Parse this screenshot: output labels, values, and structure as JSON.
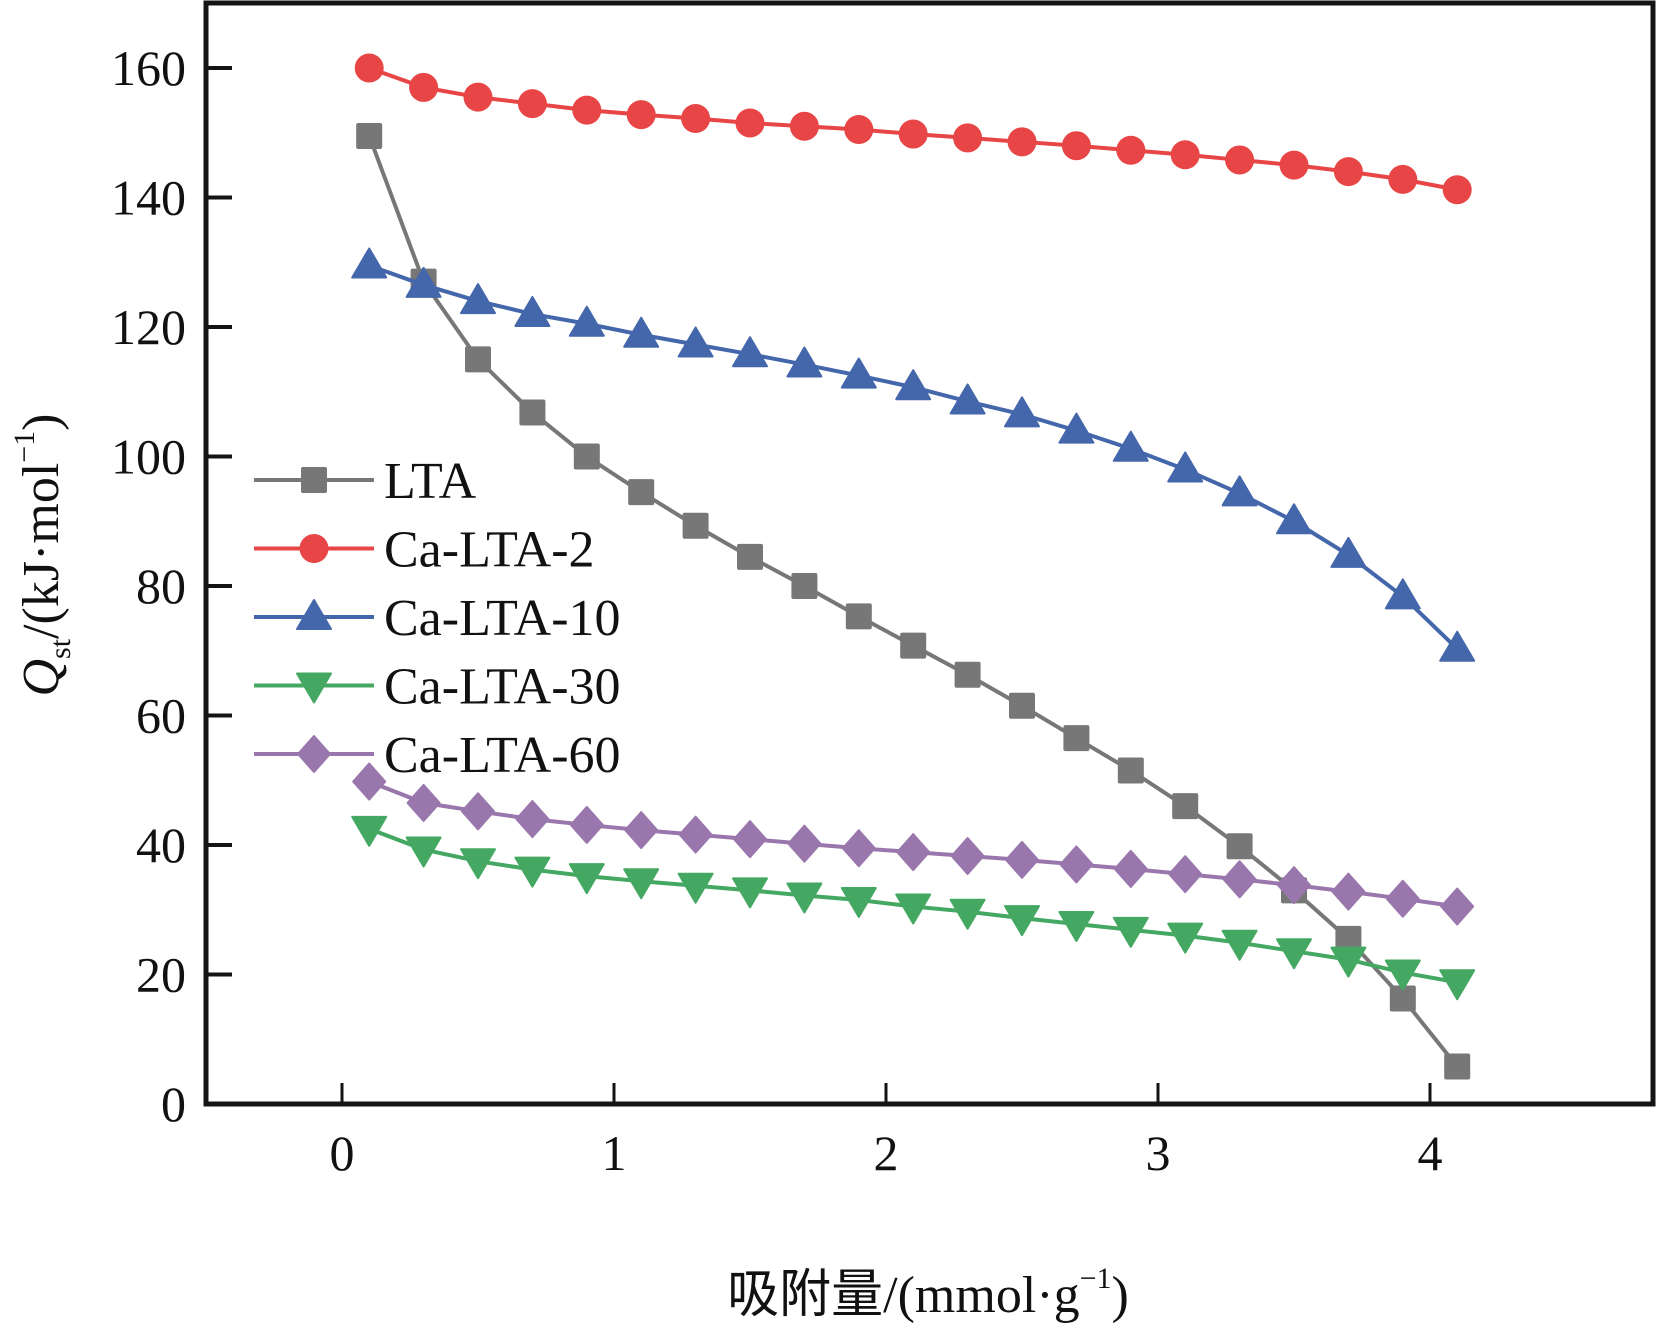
{
  "chart_data": {
    "type": "line",
    "title": "",
    "xlabel": "吸附量/(mmol·g⁻¹)",
    "ylabel": "Qst/(kJ·mol⁻¹)",
    "xlabel_parts": {
      "main": "吸附量/(mmol·g",
      "sup": "−1",
      "end": ")"
    },
    "ylabel_parts": {
      "q": "Q",
      "sub": "st",
      "main": "/(kJ·mol",
      "sup": "−1",
      "end": ")"
    },
    "xlim": [
      -0.5,
      4.5
    ],
    "ylim": [
      0,
      170
    ],
    "xticks": [
      0,
      1,
      2,
      3,
      4
    ],
    "xtick_labels": [
      "0",
      "1",
      "2",
      "3",
      "4"
    ],
    "yticks": [
      0,
      20,
      40,
      60,
      80,
      100,
      120,
      140,
      160
    ],
    "ytick_labels": [
      "0",
      "20",
      "40",
      "60",
      "80",
      "100",
      "120",
      "140",
      "160"
    ],
    "grid": false,
    "legend_position": "center-left",
    "x": [
      0.1,
      0.3,
      0.5,
      0.7,
      0.9,
      1.1,
      1.3,
      1.5,
      1.7,
      1.9,
      2.1,
      2.3,
      2.5,
      2.7,
      2.9,
      3.1,
      3.3,
      3.5,
      3.7,
      3.9,
      4.1
    ],
    "series": [
      {
        "name": "LTA",
        "marker": "square",
        "color": "#777777",
        "values": [
          149.5,
          127,
          115,
          106.8,
          100,
          94.5,
          89.3,
          84.5,
          80,
          75.3,
          70.8,
          66.3,
          61.5,
          56.5,
          51.5,
          46,
          39.8,
          33,
          25.5,
          16.3,
          5.8
        ]
      },
      {
        "name": "Ca-LTA-2",
        "marker": "circle",
        "color": "#e84646",
        "values": [
          160,
          157,
          155.5,
          154.5,
          153.5,
          152.8,
          152.2,
          151.5,
          151,
          150.5,
          149.8,
          149.2,
          148.6,
          148,
          147.3,
          146.6,
          145.8,
          145,
          144,
          142.8,
          141.2
        ]
      },
      {
        "name": "Ca-LTA-10",
        "marker": "triangle-up",
        "color": "#4466aa",
        "values": [
          129.5,
          126.5,
          124,
          122,
          120.5,
          118.8,
          117.3,
          115.8,
          114.2,
          112.5,
          110.7,
          108.5,
          106.5,
          104,
          101.2,
          98,
          94.3,
          90,
          84.8,
          78.4,
          70.3
        ]
      },
      {
        "name": "Ca-LTA-30",
        "marker": "triangle-down",
        "color": "#44a862",
        "values": [
          42.5,
          39.3,
          37.5,
          36.2,
          35.2,
          34.4,
          33.7,
          33,
          32.2,
          31.5,
          30.5,
          29.7,
          28.7,
          27.8,
          26.9,
          26,
          24.9,
          23.6,
          22.3,
          20.3,
          18.8
        ]
      },
      {
        "name": "Ca-LTA-60",
        "marker": "diamond",
        "color": "#9977ad",
        "values": [
          49.8,
          46.5,
          45.2,
          44,
          43.1,
          42.3,
          41.6,
          40.9,
          40.2,
          39.5,
          38.9,
          38.3,
          37.7,
          37,
          36.3,
          35.5,
          34.7,
          33.8,
          32.8,
          31.7,
          30.5
        ]
      }
    ]
  }
}
